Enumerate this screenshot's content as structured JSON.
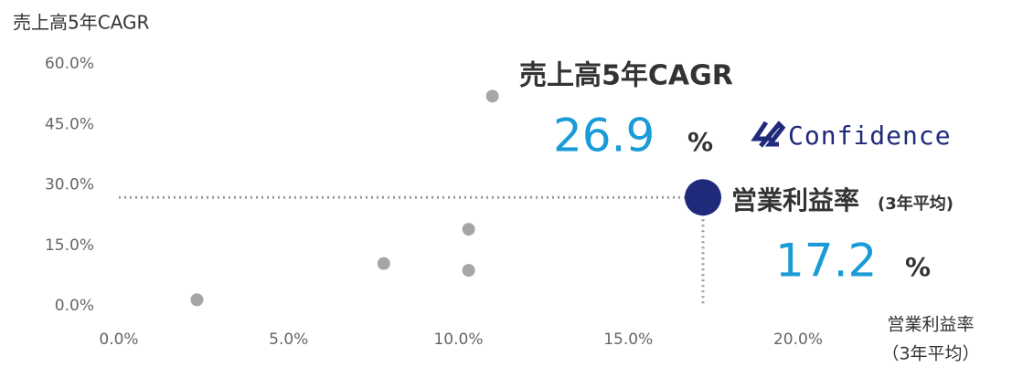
{
  "chart_data": {
    "type": "scatter",
    "y_axis_title": "売上高5年CAGR",
    "x_axis_title": "営業利益率",
    "x_axis_subtitle": "（3年平均）",
    "xlim": [
      0,
      20
    ],
    "ylim": [
      0,
      60
    ],
    "xticks": [
      {
        "value": 0,
        "label": "0.0%"
      },
      {
        "value": 5,
        "label": "5.0%"
      },
      {
        "value": 10,
        "label": "10.0%"
      },
      {
        "value": 15,
        "label": "15.0%"
      },
      {
        "value": 20,
        "label": "20.0%"
      }
    ],
    "yticks": [
      {
        "value": 0,
        "label": "0.0%"
      },
      {
        "value": 15,
        "label": "15.0%"
      },
      {
        "value": 30,
        "label": "30.0%"
      },
      {
        "value": 45,
        "label": "45.0%"
      },
      {
        "value": 60,
        "label": "60.0%"
      }
    ],
    "points": {
      "color": "#a6a6a6",
      "x": [
        2.3,
        7.8,
        10.3,
        10.3,
        11.0
      ],
      "y": [
        1.5,
        10.5,
        8.8,
        19.0,
        52.0
      ]
    },
    "highlight": {
      "color": "#1f2a7a",
      "x": 17.2,
      "y": 26.9,
      "unit": "%",
      "y_title": "売上高5年CAGR",
      "x_title": "営業利益率",
      "x_subtitle": "(3年平均)"
    },
    "logo": "Confidence"
  }
}
